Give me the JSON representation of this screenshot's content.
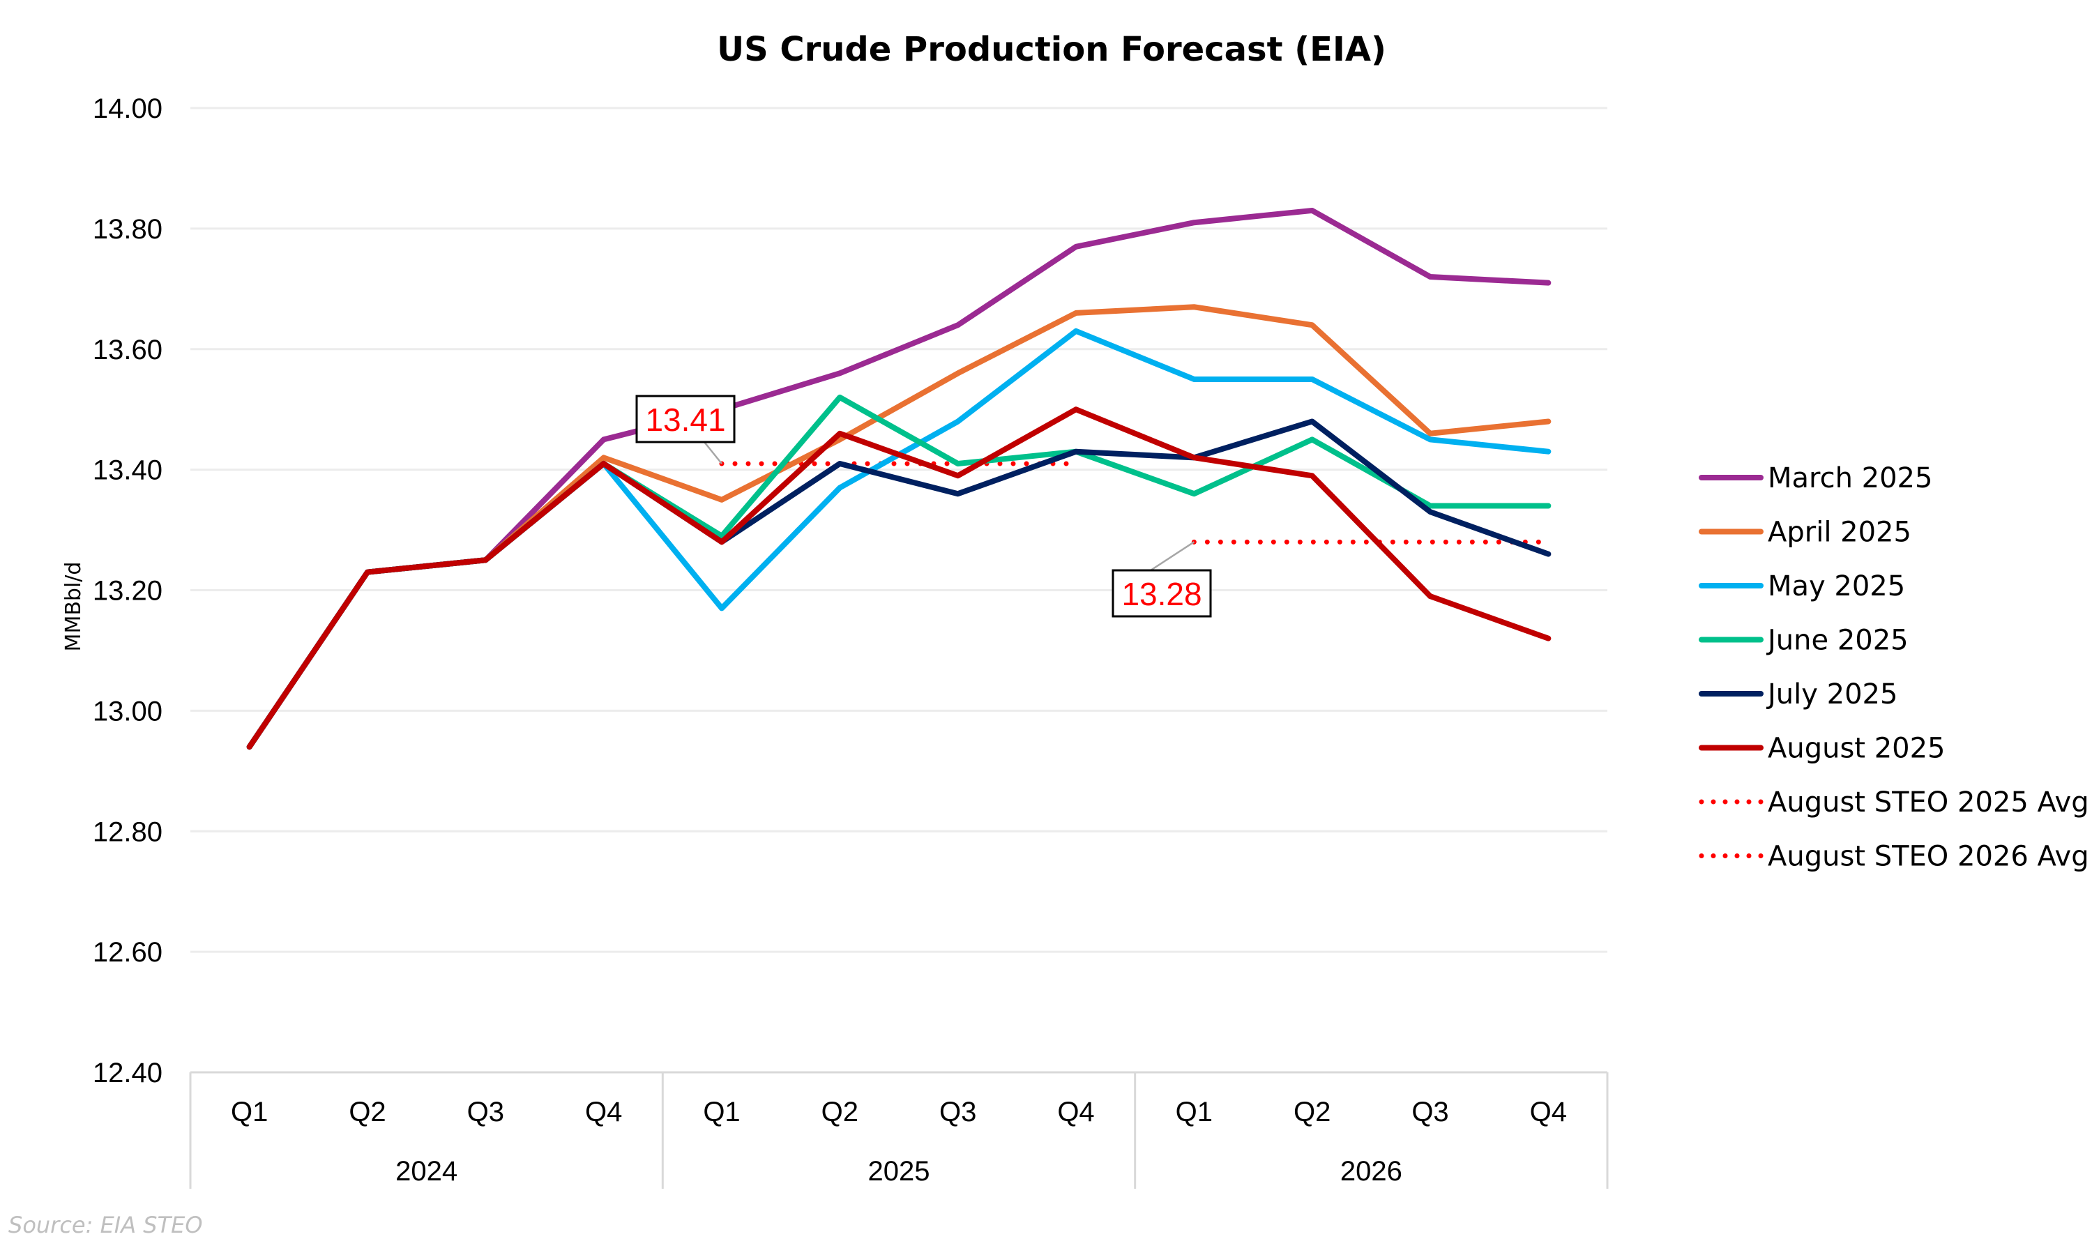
{
  "chart_data": {
    "type": "line",
    "title": "US Crude Production Forecast (EIA)",
    "xlabel": "",
    "ylabel": "MMBbl/d",
    "ylim": [
      12.4,
      14.0
    ],
    "yticks": [
      "12.40",
      "12.60",
      "12.80",
      "13.00",
      "13.20",
      "13.40",
      "13.60",
      "13.80",
      "14.00"
    ],
    "ytick_values": [
      12.4,
      12.6,
      12.8,
      13.0,
      13.2,
      13.4,
      13.6,
      13.8,
      14.0
    ],
    "grid": true,
    "legend_position": "right",
    "categories": [
      "Q1",
      "Q2",
      "Q3",
      "Q4",
      "Q1",
      "Q2",
      "Q3",
      "Q4",
      "Q1",
      "Q2",
      "Q3",
      "Q4"
    ],
    "groups": [
      {
        "label": "2024",
        "span": 4
      },
      {
        "label": "2025",
        "span": 4
      },
      {
        "label": "2026",
        "span": 4
      }
    ],
    "series": [
      {
        "name": "March 2025",
        "color": "#9b2a92",
        "values": [
          12.94,
          13.23,
          13.25,
          13.45,
          13.5,
          13.56,
          13.64,
          13.77,
          13.81,
          13.83,
          13.72,
          13.71
        ]
      },
      {
        "name": "April 2025",
        "color": "#e97132",
        "values": [
          12.94,
          13.23,
          13.25,
          13.42,
          13.35,
          13.45,
          13.56,
          13.66,
          13.67,
          13.64,
          13.46,
          13.48
        ]
      },
      {
        "name": "May 2025",
        "color": "#00b0f0",
        "values": [
          12.94,
          13.23,
          13.25,
          13.41,
          13.17,
          13.37,
          13.48,
          13.63,
          13.55,
          13.55,
          13.45,
          13.43
        ]
      },
      {
        "name": "June 2025",
        "color": "#00c08b",
        "values": [
          12.94,
          13.23,
          13.25,
          13.41,
          13.29,
          13.52,
          13.41,
          13.43,
          13.36,
          13.45,
          13.34,
          13.34
        ]
      },
      {
        "name": "July 2025",
        "color": "#002060",
        "values": [
          12.94,
          13.23,
          13.25,
          13.41,
          13.28,
          13.41,
          13.36,
          13.43,
          13.42,
          13.48,
          13.33,
          13.26
        ]
      },
      {
        "name": "August 2025",
        "color": "#c00000",
        "values": [
          12.94,
          13.23,
          13.25,
          13.41,
          13.28,
          13.46,
          13.39,
          13.5,
          13.42,
          13.39,
          13.19,
          13.12
        ]
      }
    ],
    "averages": [
      {
        "name": "August STEO 2025 Avg",
        "color": "#ff0000",
        "value": 13.41,
        "from_index": 4,
        "to_index": 7,
        "label": "13.41"
      },
      {
        "name": "August STEO 2026 Avg",
        "color": "#ff0000",
        "value": 13.28,
        "from_index": 8,
        "to_index": 11,
        "label": "13.28"
      }
    ]
  },
  "source": "Source: EIA STEO"
}
